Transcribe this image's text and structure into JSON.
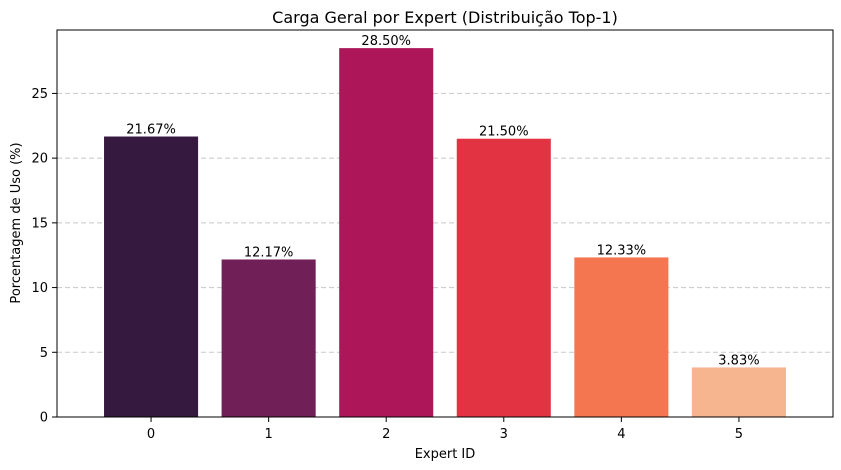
{
  "chart_data": {
    "type": "bar",
    "title": "Carga Geral por Expert (Distribuição Top-1)",
    "xlabel": "Expert ID",
    "ylabel": "Porcentagem de Uso (%)",
    "categories": [
      "0",
      "1",
      "2",
      "3",
      "4",
      "5"
    ],
    "values": [
      21.67,
      12.17,
      28.5,
      21.5,
      12.33,
      3.83
    ],
    "data_labels": [
      "21.67%",
      "12.17%",
      "28.50%",
      "21.50%",
      "12.33%",
      "3.83%"
    ],
    "colors": [
      "#35193e",
      "#701f57",
      "#ad1759",
      "#e13342",
      "#f37651",
      "#f6b48f"
    ],
    "yticks": [
      0,
      5,
      10,
      15,
      20,
      25
    ],
    "ylim": [
      0,
      29.9
    ],
    "grid": "y-dashed",
    "legend": "none"
  }
}
